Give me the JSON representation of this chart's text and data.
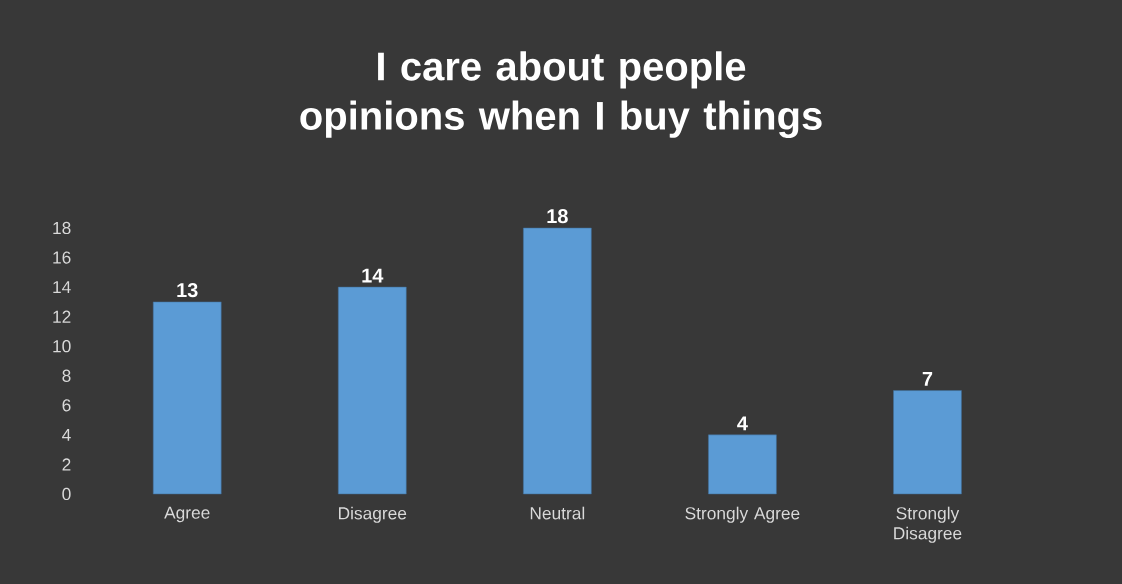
{
  "chart_data": {
    "type": "bar",
    "title": "I care about people opinions when I buy things",
    "categories": [
      "Agree",
      "Disagree",
      "Neutral",
      "Strongly Agree",
      "Strongly Disagree"
    ],
    "values": [
      13,
      14,
      18,
      4,
      7
    ],
    "color": "#5b9bd5",
    "ylim": [
      0,
      18
    ],
    "yticks": [
      0,
      2,
      4,
      6,
      8,
      10,
      12,
      14,
      16,
      18
    ],
    "data_labels": true
  }
}
